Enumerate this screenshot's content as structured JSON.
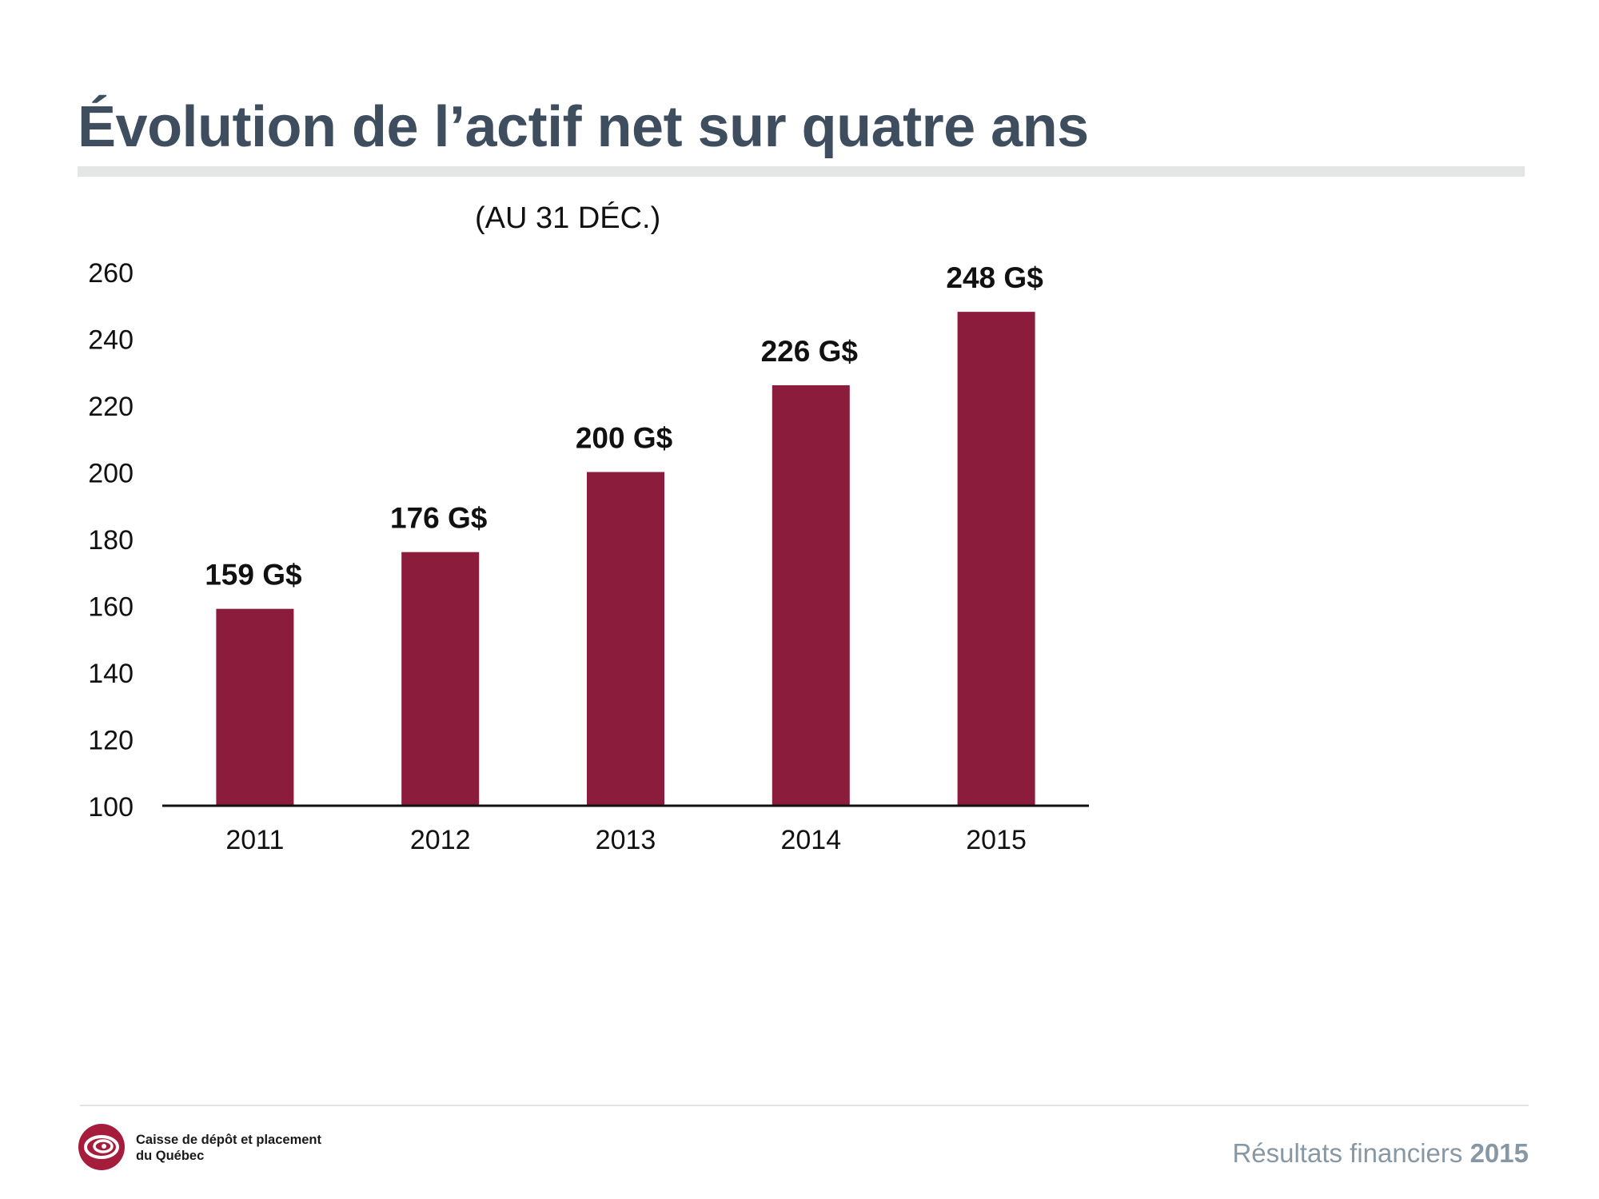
{
  "slide": {
    "title": "Évolution de l’actif net sur quatre ans"
  },
  "chart_data": {
    "type": "bar",
    "subtitle": "(AU 31 DÉC.)",
    "categories": [
      "2011",
      "2012",
      "2013",
      "2014",
      "2015"
    ],
    "values": [
      159,
      176,
      200,
      226,
      248
    ],
    "data_labels": [
      "159 G$",
      "176 G$",
      "200 G$",
      "226 G$",
      "248 G$"
    ],
    "yticks": [
      100,
      120,
      140,
      160,
      180,
      200,
      220,
      240,
      260
    ],
    "ylim": [
      100,
      260
    ],
    "xlabel": "",
    "ylabel": "",
    "grid": false,
    "bar_color": "#8c1c3c"
  },
  "footer": {
    "org_line1": "Caisse de dépôt et placement",
    "org_line2": "du Québec",
    "report_label": "Résultats financiers",
    "report_year": "2015",
    "logo_color": "#a51d3a"
  }
}
